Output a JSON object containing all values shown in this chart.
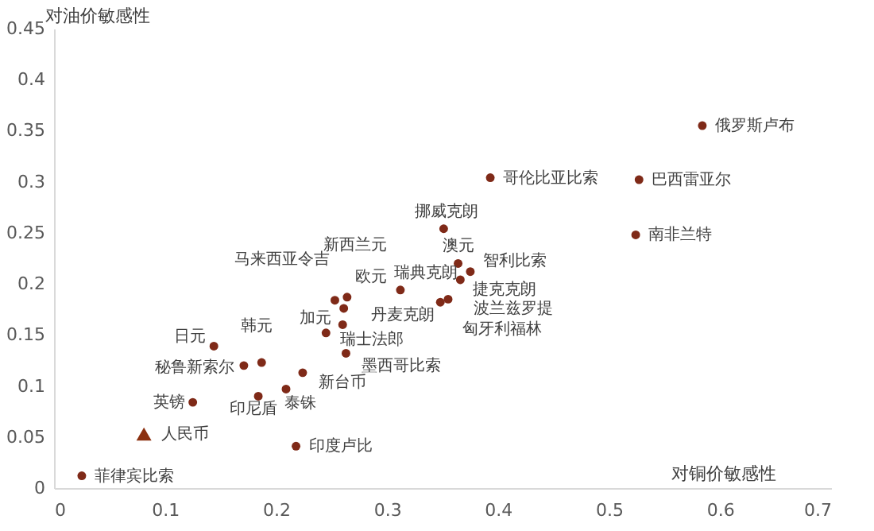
{
  "chart_data": {
    "type": "scatter",
    "xlabel": "对铜价敏感性",
    "ylabel": "对油价敏感性",
    "xlim": [
      0,
      0.7
    ],
    "xticks": [
      0,
      0.1,
      0.2,
      0.3,
      0.4,
      0.5,
      0.6,
      0.7
    ],
    "ylim": [
      0,
      0.45
    ],
    "yticks": [
      0,
      0.05,
      0.1,
      0.15,
      0.2,
      0.25,
      0.3,
      0.35,
      0.4,
      0.45
    ],
    "grid": false,
    "series": [
      {
        "color": "#7f2a18",
        "marker": "circle",
        "x": [
          0.584,
          0.393,
          0.527,
          0.524,
          0.351,
          0.364,
          0.375,
          0.366,
          0.312,
          0.355,
          0.348,
          0.253,
          0.264,
          0.261,
          0.26,
          0.245,
          0.263,
          0.144,
          0.187,
          0.171,
          0.224,
          0.209,
          0.184,
          0.218,
          0.125,
          0.025
        ],
        "values": [
          0.355,
          0.304,
          0.302,
          0.248,
          0.254,
          0.22,
          0.212,
          0.204,
          0.194,
          0.185,
          0.182,
          0.184,
          0.187,
          0.176,
          0.16,
          0.152,
          0.132,
          0.139,
          0.123,
          0.12,
          0.113,
          0.097,
          0.09,
          0.041,
          0.084,
          0.012
        ]
      },
      {
        "color": "#8b3010",
        "marker": "triangle",
        "x": [
          0.081
        ],
        "values": [
          0.053
        ]
      }
    ],
    "annotations": [
      {
        "text": "俄罗斯卢布",
        "x": 0.584,
        "y": 0.355
      },
      {
        "text": "哥伦比亚比索",
        "x": 0.393,
        "y": 0.304
      },
      {
        "text": "巴西雷亚尔",
        "x": 0.527,
        "y": 0.302
      },
      {
        "text": "南非兰特",
        "x": 0.524,
        "y": 0.248
      },
      {
        "text": "挪威克朗",
        "x": 0.351,
        "y": 0.254
      },
      {
        "text": "澳元",
        "x": 0.364,
        "y": 0.22
      },
      {
        "text": "智利比索",
        "x": 0.375,
        "y": 0.212
      },
      {
        "text": "捷克克朗",
        "x": 0.366,
        "y": 0.204
      },
      {
        "text": "瑞典克朗",
        "x": 0.312,
        "y": 0.194
      },
      {
        "text": "波兰兹罗提",
        "x": 0.355,
        "y": 0.185
      },
      {
        "text": "匈牙利福林",
        "x": 0.348,
        "y": 0.182
      },
      {
        "text": "马来西亚令吉",
        "x": 0.253,
        "y": 0.184
      },
      {
        "text": "新西兰元",
        "x": 0.264,
        "y": 0.187
      },
      {
        "text": "欧元",
        "x": 0.264,
        "y": 0.187
      },
      {
        "text": "丹麦克朗",
        "x": 0.261,
        "y": 0.176
      },
      {
        "text": "加元",
        "x": 0.26,
        "y": 0.16
      },
      {
        "text": "瑞士法郎",
        "x": 0.245,
        "y": 0.152
      },
      {
        "text": "墨西哥比索",
        "x": 0.263,
        "y": 0.132
      },
      {
        "text": "日元",
        "x": 0.144,
        "y": 0.139
      },
      {
        "text": "韩元",
        "x": 0.187,
        "y": 0.123
      },
      {
        "text": "秘鲁新索尔",
        "x": 0.171,
        "y": 0.12
      },
      {
        "text": "新台币",
        "x": 0.224,
        "y": 0.113
      },
      {
        "text": "泰铢",
        "x": 0.209,
        "y": 0.097
      },
      {
        "text": "印尼盾",
        "x": 0.184,
        "y": 0.09
      },
      {
        "text": "印度卢比",
        "x": 0.218,
        "y": 0.041
      },
      {
        "text": "英镑",
        "x": 0.125,
        "y": 0.084
      },
      {
        "text": "菲律宾比索",
        "x": 0.025,
        "y": 0.012
      },
      {
        "text": "人民币",
        "x": 0.081,
        "y": 0.053
      }
    ]
  }
}
